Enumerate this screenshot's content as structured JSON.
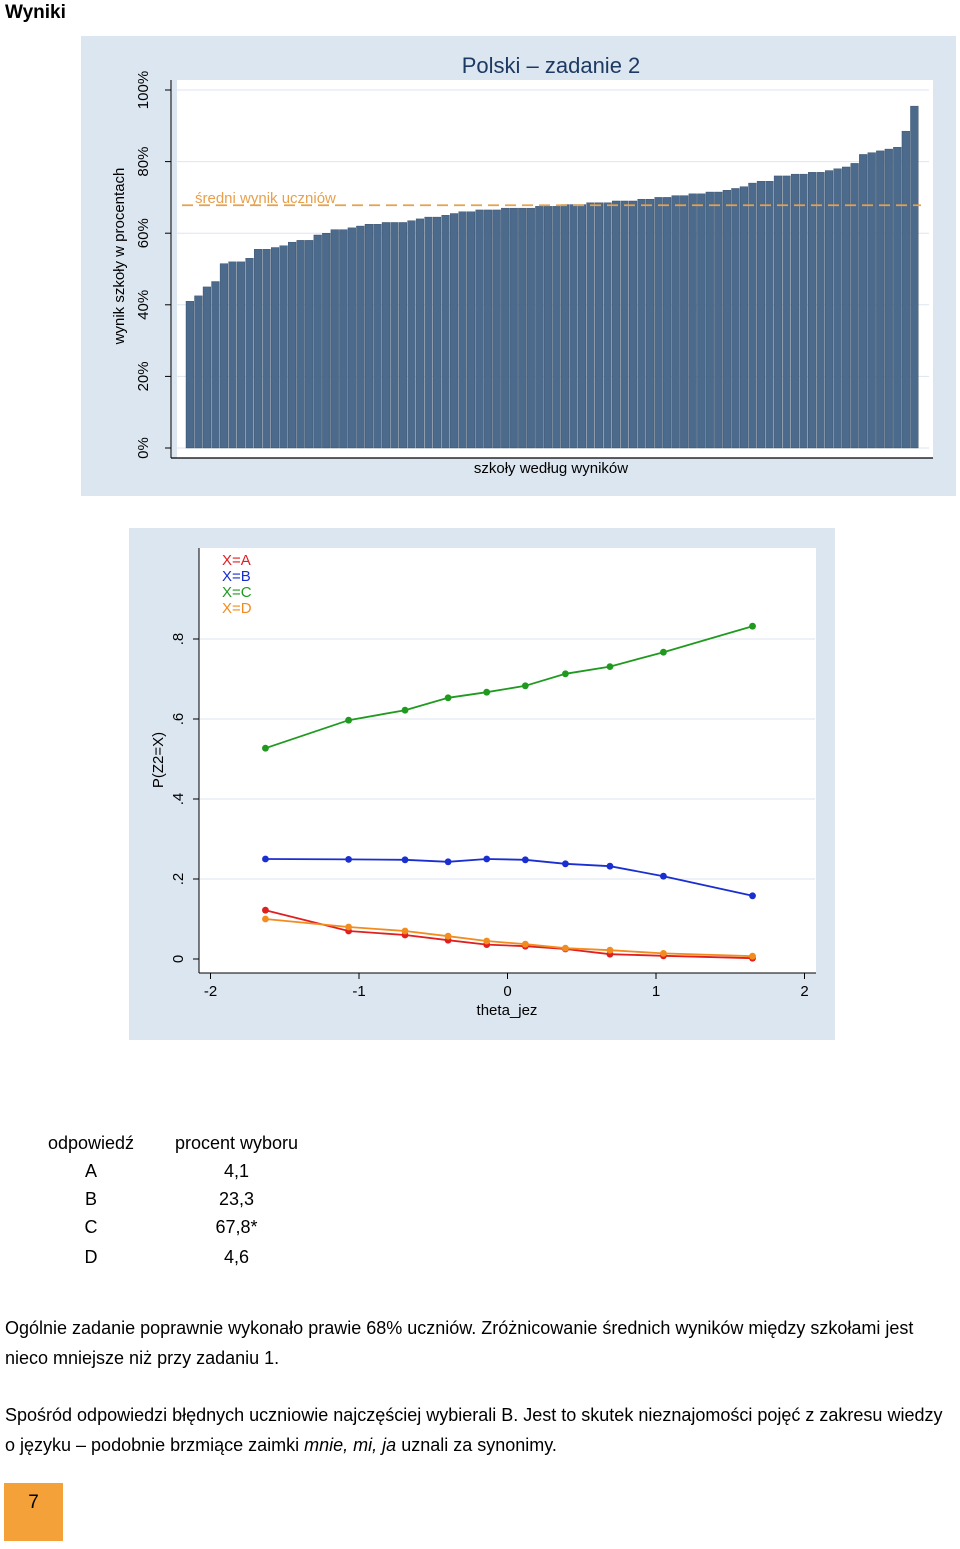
{
  "page": {
    "heading": "Wyniki",
    "page_number": "7"
  },
  "chart_data": [
    {
      "type": "bar",
      "title": "Polski – zadanie 2",
      "xlabel": "szkoły według wyników",
      "ylabel": "wynik szkoły w procentach",
      "ytick_labels": [
        "0%",
        "20%",
        "40%",
        "60%",
        "80%",
        "100%"
      ],
      "ylim": [
        0,
        100
      ],
      "grid": true,
      "bar_color": "#4c6a8c",
      "background": "#dce6f0",
      "reference_line": {
        "label": "średni wynik uczniów",
        "value": 67.8,
        "color": "#e8a04a"
      },
      "values": [
        41,
        42.5,
        45,
        46.5,
        51.5,
        52,
        52,
        53,
        55.5,
        55.5,
        56,
        56.5,
        57.5,
        58,
        58,
        59.5,
        60,
        61,
        61,
        61.5,
        62,
        62.5,
        62.5,
        63,
        63,
        63,
        63.5,
        64,
        64.5,
        64.5,
        65,
        65.5,
        66,
        66,
        66.5,
        66.5,
        66.5,
        67,
        67,
        67,
        67,
        67.5,
        67.5,
        67.5,
        68,
        68,
        68,
        68.5,
        68.5,
        68.5,
        69,
        69,
        69,
        69.5,
        69.5,
        70,
        70,
        70.5,
        70.5,
        71,
        71,
        71.5,
        71.5,
        72,
        72.5,
        73,
        74,
        74.5,
        74.5,
        76,
        76,
        76.5,
        76.5,
        77,
        77,
        77.5,
        78,
        78.5,
        79.5,
        82,
        82.5,
        83,
        83.5,
        84,
        88.5,
        95.5
      ]
    },
    {
      "type": "line",
      "xlabel": "theta_jez",
      "ylabel": "P(Z2=X)",
      "xtick_labels": [
        "-2",
        "-1",
        "0",
        "1",
        "2"
      ],
      "ytick_labels": [
        "0",
        ".2",
        ".4",
        ".6",
        ".8"
      ],
      "xlim": [
        -2.1,
        2.1
      ],
      "ylim": [
        -0.03,
        0.98
      ],
      "grid": true,
      "legend_position": "top-left",
      "background": "#dce6f0",
      "x": [
        -1.63,
        -1.07,
        -0.69,
        -0.4,
        -0.14,
        0.12,
        0.39,
        0.69,
        1.05,
        1.65
      ],
      "series": [
        {
          "name": "X=A",
          "color": "#e02020",
          "values": [
            0.122,
            0.07,
            0.06,
            0.047,
            0.036,
            0.032,
            0.025,
            0.012,
            0.008,
            0.002
          ]
        },
        {
          "name": "X=B",
          "color": "#1a2fd0",
          "values": [
            0.25,
            0.249,
            0.248,
            0.243,
            0.25,
            0.248,
            0.238,
            0.232,
            0.207,
            0.158
          ]
        },
        {
          "name": "X=C",
          "color": "#1f9a1f",
          "values": [
            0.527,
            0.597,
            0.622,
            0.653,
            0.667,
            0.683,
            0.713,
            0.731,
            0.767,
            0.832
          ]
        },
        {
          "name": "X=D",
          "color": "#f28c1e",
          "values": [
            0.1,
            0.08,
            0.07,
            0.057,
            0.045,
            0.037,
            0.027,
            0.022,
            0.014,
            0.007
          ]
        }
      ]
    }
  ],
  "table": {
    "header": [
      "odpowiedź",
      "procent wyboru"
    ],
    "rows": [
      [
        "A",
        "4,1"
      ],
      [
        "B",
        "23,3"
      ],
      [
        "C",
        "67,8*"
      ],
      [
        "D",
        "4,6"
      ]
    ]
  },
  "paragraphs": {
    "p1": "Ogólnie zadanie poprawnie wykonało prawie 68% uczniów. Zróżnicowanie średnich wyników między szkołami jest nieco mniejsze niż przy zadaniu 1.",
    "p2_start": "Spośród odpowiedzi błędnych uczniowie najczęściej wybierali B. Jest to skutek nieznajomości pojęć z zakresu wiedzy o języku – podobnie brzmiące zaimki ",
    "p2_italic": "mnie, mi, ja",
    "p2_end": " uznali za synonimy."
  }
}
